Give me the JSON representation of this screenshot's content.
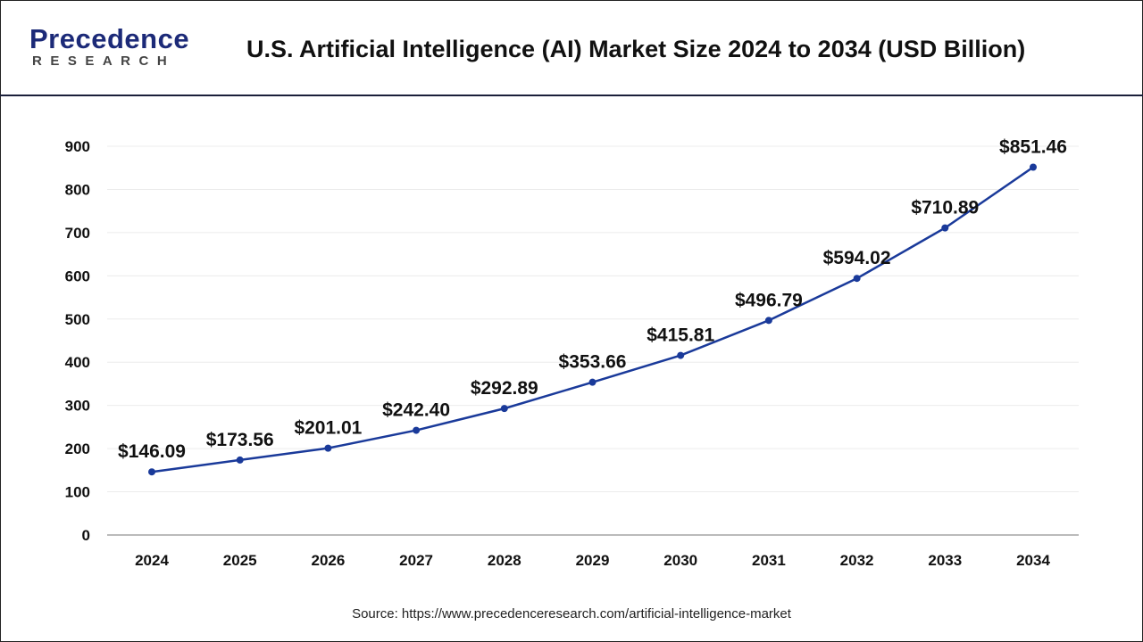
{
  "brand": {
    "logo_text": "Precedence",
    "logo_subtext": "RESEARCH",
    "primary_color": "#1c2a78",
    "accent_color": "#2f6fd6"
  },
  "header": {
    "title": "U.S. Artificial Intelligence (AI) Market Size 2024 to 2034 (USD Billion)"
  },
  "chart_data": {
    "type": "line",
    "title": "U.S. Artificial Intelligence (AI) Market Size 2024 to 2034 (USD Billion)",
    "xlabel": "",
    "ylabel": "",
    "categories": [
      "2024",
      "2025",
      "2026",
      "2027",
      "2028",
      "2029",
      "2030",
      "2031",
      "2032",
      "2033",
      "2034"
    ],
    "series": [
      {
        "values": [
          146.09,
          173.56,
          201.01,
          242.4,
          292.89,
          353.66,
          415.81,
          496.79,
          594.02,
          710.89,
          851.46
        ],
        "labels": [
          "$146.09",
          "$173.56",
          "$201.01",
          "$242.40",
          "$292.89",
          "$353.66",
          "$415.81",
          "$496.79",
          "$594.02",
          "$710.89",
          "$851.46"
        ],
        "color": "#1a3a9a"
      }
    ],
    "ylim": [
      0,
      900
    ],
    "yticks": [
      "0",
      "100",
      "200",
      "300",
      "400",
      "500",
      "600",
      "700",
      "800",
      "900"
    ],
    "grid": true,
    "legend": "none"
  },
  "footer": {
    "source": "Source: https://www.precedenceresearch.com/artificial-intelligence-market"
  }
}
